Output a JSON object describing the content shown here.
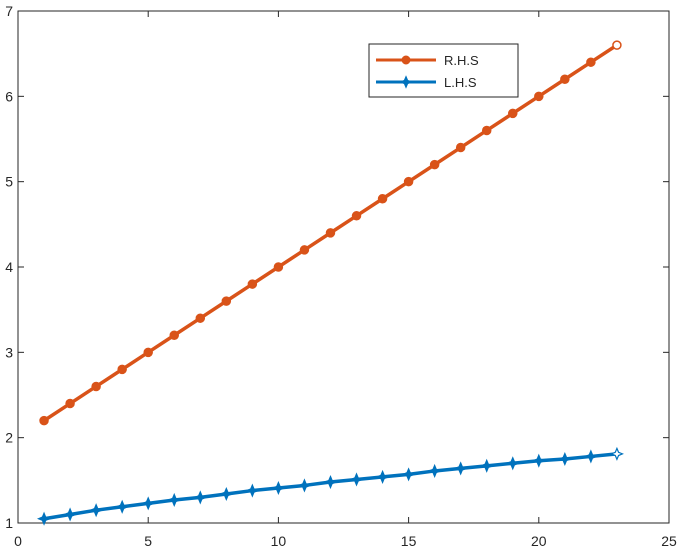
{
  "chart_data": {
    "type": "line",
    "title": "",
    "xlabel": "",
    "ylabel": "",
    "xlim": [
      0,
      25
    ],
    "ylim": [
      1,
      7
    ],
    "xticks": [
      0,
      5,
      10,
      15,
      20,
      25
    ],
    "yticks": [
      1,
      2,
      3,
      4,
      5,
      6,
      7
    ],
    "xtick_labels": [
      "0",
      "5",
      "10",
      "15",
      "20",
      "25"
    ],
    "ytick_labels": [
      "1",
      "2",
      "3",
      "4",
      "5",
      "6",
      "7"
    ],
    "grid": false,
    "legend_position": "top-right",
    "x": [
      1,
      2,
      3,
      4,
      5,
      6,
      7,
      8,
      9,
      10,
      11,
      12,
      13,
      14,
      15,
      16,
      17,
      18,
      19,
      20,
      21,
      22,
      23
    ],
    "series": [
      {
        "name": "R.H.S",
        "color": "#D95319",
        "marker": "circle",
        "values": [
          2.2,
          2.4,
          2.6,
          2.8,
          3.0,
          3.2,
          3.4,
          3.6,
          3.8,
          4.0,
          4.2,
          4.4,
          4.6,
          4.8,
          5.0,
          5.2,
          5.4,
          5.6,
          5.8,
          6.0,
          6.2,
          6.4,
          6.6
        ]
      },
      {
        "name": "L.H.S",
        "color": "#0072BD",
        "marker": "star",
        "values": [
          1.05,
          1.1,
          1.15,
          1.19,
          1.23,
          1.27,
          1.3,
          1.34,
          1.38,
          1.41,
          1.44,
          1.48,
          1.51,
          1.54,
          1.57,
          1.61,
          1.64,
          1.67,
          1.7,
          1.73,
          1.75,
          1.78,
          1.81
        ]
      }
    ]
  }
}
